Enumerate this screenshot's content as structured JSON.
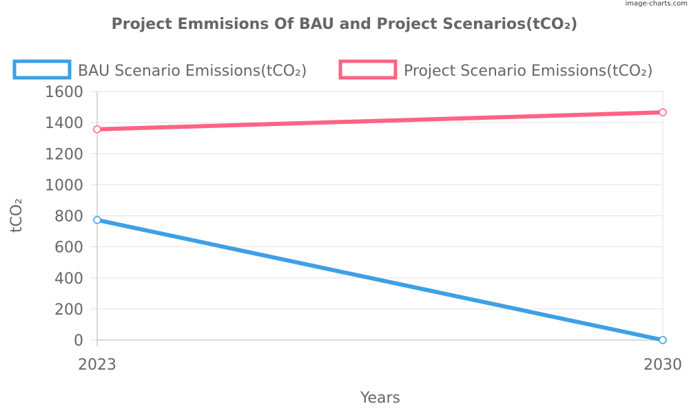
{
  "watermark": "image-charts.com",
  "chart_data": {
    "type": "line",
    "title": "Project Emmisions Of BAU and Project Scenarios(tCO₂)",
    "xlabel": "Years",
    "ylabel": "tCO₂",
    "categories": [
      "2023",
      "2030"
    ],
    "ylim": [
      0,
      1600
    ],
    "yticks": [
      0,
      200,
      400,
      600,
      800,
      1000,
      1200,
      1400,
      1600
    ],
    "grid": true,
    "legend_position": "top",
    "series": [
      {
        "name": "BAU Scenario Emissions(tCO₂)",
        "color": "#3ea0e6",
        "values": [
          773,
          0
        ]
      },
      {
        "name": "Project Scenario Emissions(tCO₂)",
        "color": "#ff6384",
        "values": [
          1357,
          1466
        ]
      }
    ]
  }
}
